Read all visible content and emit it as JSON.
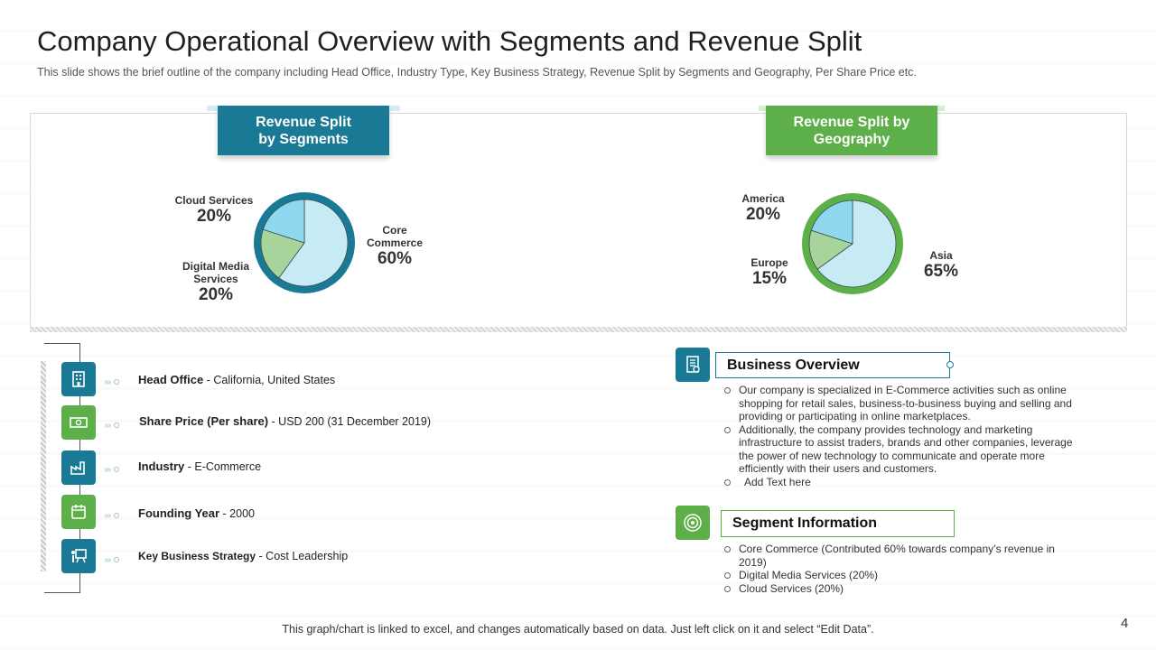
{
  "title": "Company Operational Overview with Segments and Revenue Split",
  "subtitle": "This slide shows the brief outline of the company including Head Office, Industry Type, Key Business Strategy, Revenue  Split by Segments and Geography,  Per Share Price etc.",
  "colors": {
    "teal": "#1a7a96",
    "green": "#5daf4a",
    "light_blue": "#c6ebf5",
    "light_green": "#a6d49b",
    "sky": "#8fd8ee"
  },
  "segments_tab": {
    "line1": "Revenue Split",
    "line2": "by Segments"
  },
  "geography_tab": {
    "line1": "Revenue Split by",
    "line2": "Geography"
  },
  "chart_data": [
    {
      "type": "pie",
      "title": "Revenue Split by Segments",
      "slices": [
        {
          "label": "Core Commerce",
          "value": 60,
          "color": "#c6ebf5"
        },
        {
          "label": "Digital Media Services",
          "value": 20,
          "color": "#a6d49b"
        },
        {
          "label": "Cloud Services",
          "value": 20,
          "color": "#8fd8ee"
        }
      ],
      "ring_color": "#1a7a96"
    },
    {
      "type": "pie",
      "title": "Revenue Split by Geography",
      "slices": [
        {
          "label": "Asia",
          "value": 65,
          "color": "#c6ebf5"
        },
        {
          "label": "Europe",
          "value": 15,
          "color": "#a6d49b"
        },
        {
          "label": "America",
          "value": 20,
          "color": "#8fd8ee"
        }
      ],
      "ring_color": "#5daf4a"
    }
  ],
  "segment_labels": {
    "cloud": {
      "name": "Cloud  Services",
      "pct": "20%"
    },
    "digital": {
      "name1": "Digital Media",
      "name2": "Services",
      "pct": "20%"
    },
    "core": {
      "name1": "Core",
      "name2": "Commerce",
      "pct": "60%"
    }
  },
  "geo_labels": {
    "america": {
      "name": "America",
      "pct": "20%"
    },
    "europe": {
      "name": "Europe",
      "pct": "15%"
    },
    "asia": {
      "name": "Asia",
      "pct": "65%"
    }
  },
  "info_items": [
    {
      "label": "Head Office",
      "value": " - California, United States",
      "icon": "building-icon"
    },
    {
      "label": "Share Price (Per share)",
      "value": " - USD 200 (31 December 2019)",
      "icon": "money-icon"
    },
    {
      "label": "Industry",
      "value": "  - E-Commerce",
      "icon": "factory-icon"
    },
    {
      "label": "Founding Year",
      "value": " - 2000",
      "icon": "calendar-icon"
    },
    {
      "label": "Key Business Strategy",
      "value": " - Cost Leadership",
      "icon": "presentation-icon"
    }
  ],
  "business_overview": {
    "heading": "Business Overview",
    "bullets": [
      "Our company is specialized in E-Commerce activities such as online shopping for retail sales, business-to-business buying and selling and providing or participating in online marketplaces.",
      " Additionally, the company provides technology and marketing infrastructure to assist traders, brands and other companies, leverage the power of new technology to communicate and operate more efficiently with their users and customers.",
      "  Add Text here"
    ]
  },
  "segment_information": {
    "heading": "Segment Information",
    "bullets": [
      "Core Commerce (Contributed 60% towards company’s revenue in 2019)",
      "Digital Media Services (20%)",
      "Cloud Services (20%)"
    ]
  },
  "footer": "This graph/chart is linked to excel, and changes automatically based on data. Just left click on it and select “Edit Data”.",
  "page_number": "4"
}
